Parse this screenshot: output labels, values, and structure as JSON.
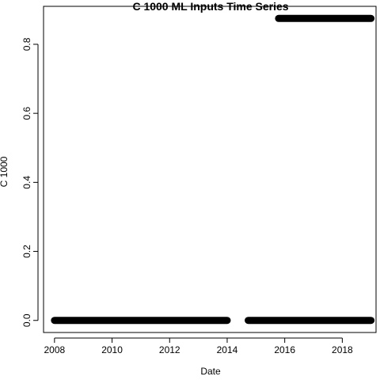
{
  "chart_data": {
    "type": "scatter",
    "title": "C 1000 ML Inputs Time Series",
    "xlabel": "Date",
    "ylabel": "C 1000",
    "xlim": [
      "2007-08-15",
      "2019-03-05"
    ],
    "ylim": [
      -0.035,
      0.91
    ],
    "x_ticks": [
      "2008",
      "2010",
      "2012",
      "2014",
      "2016",
      "2018"
    ],
    "y_ticks": [
      "0.0",
      "0.2",
      "0.4",
      "0.6",
      "0.8"
    ],
    "grid": false,
    "marker": "filled-circle",
    "color": "#000000",
    "series": [
      {
        "segments": [
          {
            "x_start": "2008-01-01",
            "x_end": "2014-01-01",
            "y": 0.0
          },
          {
            "x_start": "2014-09-25",
            "x_end": "2018-12-31",
            "y": 0.0
          },
          {
            "x_start": "2015-10-15",
            "x_end": "2018-12-31",
            "y": 0.875
          }
        ]
      }
    ]
  }
}
